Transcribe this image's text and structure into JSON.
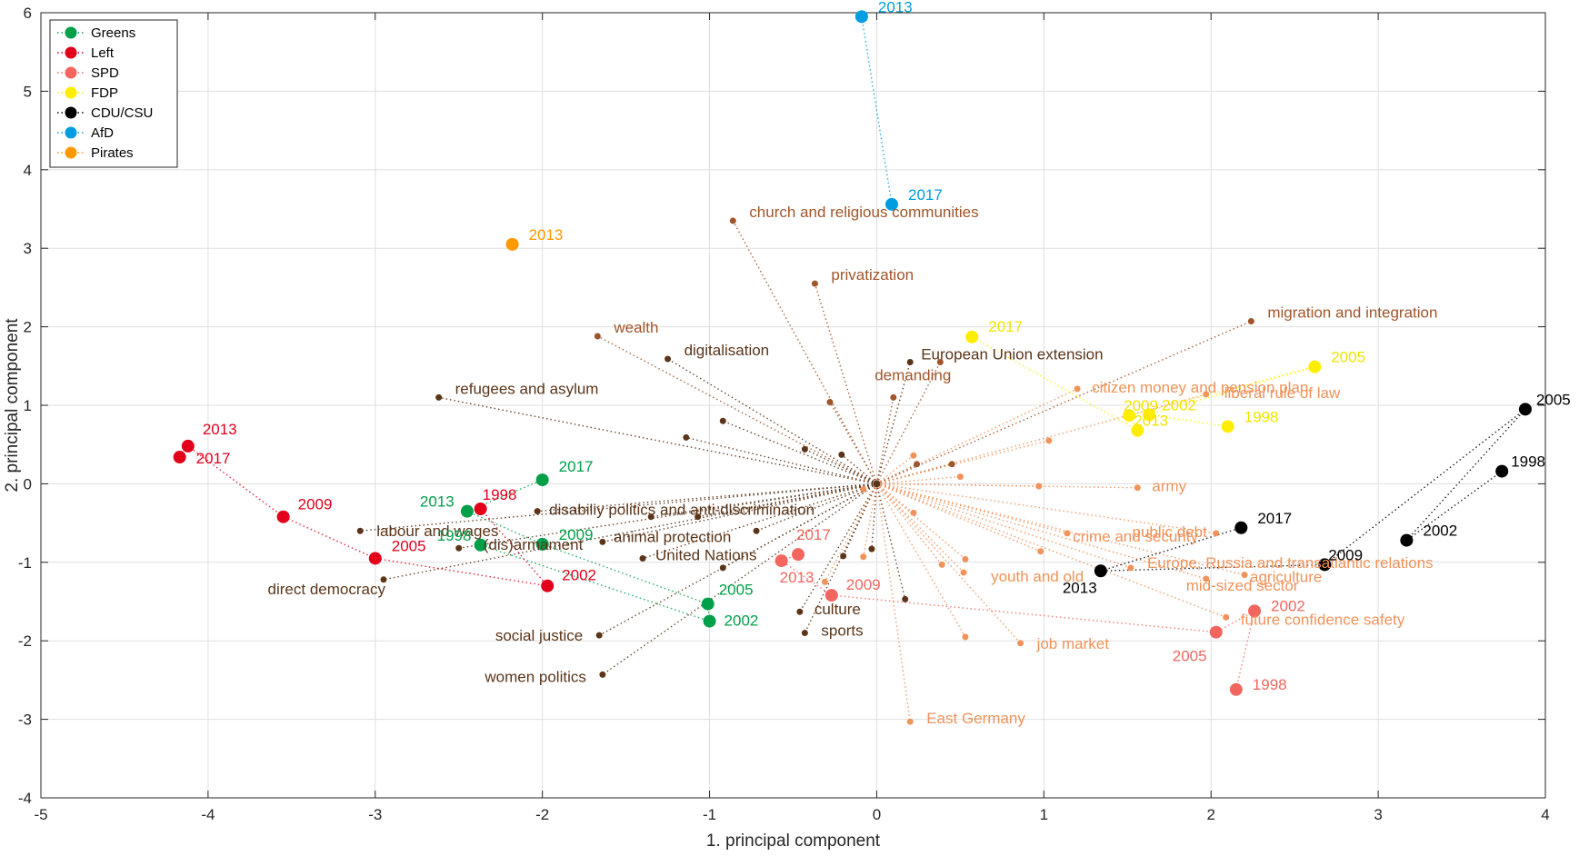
{
  "chart_data": {
    "type": "scatter",
    "title": "",
    "xlabel": "1. principal component",
    "ylabel": "2. principal component",
    "xlim": [
      -5,
      4
    ],
    "ylim": [
      -4,
      6
    ],
    "xticks": [
      "-5",
      "-4",
      "-3",
      "-2",
      "-1",
      "0",
      "1",
      "2",
      "3",
      "4"
    ],
    "yticks": [
      "-4",
      "-3",
      "-2",
      "-1",
      "0",
      "1",
      "2",
      "3",
      "4",
      "5",
      "6"
    ],
    "grid": true,
    "legend_position": "top-left",
    "origin": [
      0,
      0
    ],
    "parties": [
      {
        "name": "Greens",
        "color": "#00a04a",
        "points": [
          {
            "label": "1998",
            "x": -2.37,
            "y": -0.78
          },
          {
            "label": "2002",
            "x": -1.0,
            "y": -1.75
          },
          {
            "label": "2005",
            "x": -1.01,
            "y": -1.53
          },
          {
            "label": "2009",
            "x": -2.0,
            "y": -0.77
          },
          {
            "label": "2013",
            "x": -2.45,
            "y": -0.35
          },
          {
            "label": "2017",
            "x": -2.0,
            "y": 0.05
          }
        ]
      },
      {
        "name": "Left",
        "color": "#e2001a",
        "points": [
          {
            "label": "1998",
            "x": -2.37,
            "y": -0.32
          },
          {
            "label": "2002",
            "x": -1.97,
            "y": -1.3
          },
          {
            "label": "2005",
            "x": -3.0,
            "y": -0.95
          },
          {
            "label": "2009",
            "x": -3.55,
            "y": -0.42
          },
          {
            "label": "2013",
            "x": -4.12,
            "y": 0.48
          },
          {
            "label": "2017",
            "x": -4.17,
            "y": 0.34
          }
        ]
      },
      {
        "name": "SPD",
        "color": "#f2665f",
        "points": [
          {
            "label": "1998",
            "x": 2.15,
            "y": -2.62
          },
          {
            "label": "2002",
            "x": 2.26,
            "y": -1.62
          },
          {
            "label": "2005",
            "x": 2.03,
            "y": -1.89
          },
          {
            "label": "2009",
            "x": -0.27,
            "y": -1.42
          },
          {
            "label": "2013",
            "x": -0.57,
            "y": -0.98
          },
          {
            "label": "2017",
            "x": -0.47,
            "y": -0.9
          }
        ]
      },
      {
        "name": "FDP",
        "color": "#ffed00",
        "points": [
          {
            "label": "1998",
            "x": 2.1,
            "y": 0.73
          },
          {
            "label": "2002",
            "x": 1.63,
            "y": 0.88
          },
          {
            "label": "2005",
            "x": 2.62,
            "y": 1.49
          },
          {
            "label": "2009",
            "x": 1.51,
            "y": 0.87
          },
          {
            "label": "2013",
            "x": 1.56,
            "y": 0.68
          },
          {
            "label": "2017",
            "x": 0.57,
            "y": 1.87
          }
        ]
      },
      {
        "name": "CDU/CSU",
        "color": "#000000",
        "points": [
          {
            "label": "1998",
            "x": 3.74,
            "y": 0.16
          },
          {
            "label": "2002",
            "x": 3.17,
            "y": -0.72
          },
          {
            "label": "2005",
            "x": 3.88,
            "y": 0.95
          },
          {
            "label": "2009",
            "x": 2.68,
            "y": -1.03
          },
          {
            "label": "2013",
            "x": 1.34,
            "y": -1.11
          },
          {
            "label": "2017",
            "x": 2.18,
            "y": -0.56
          }
        ]
      },
      {
        "name": "AfD",
        "color": "#009ee0",
        "points": [
          {
            "label": "2013",
            "x": -0.09,
            "y": 5.95
          },
          {
            "label": "2017",
            "x": 0.09,
            "y": 3.56
          }
        ]
      },
      {
        "name": "Pirates",
        "color": "#ff9900",
        "points": [
          {
            "label": "2013",
            "x": -2.18,
            "y": 3.05
          }
        ]
      }
    ],
    "loadings": [
      {
        "label": "church and religious communities",
        "x": -0.86,
        "y": 3.35,
        "color": "#a0552a"
      },
      {
        "label": "privatization",
        "x": -0.37,
        "y": 2.55,
        "color": "#a0552a"
      },
      {
        "label": "wealth",
        "x": -1.67,
        "y": 1.88,
        "color": "#a0552a"
      },
      {
        "label": "digitalisation",
        "x": -1.25,
        "y": 1.59,
        "color": "#5a3519"
      },
      {
        "label": "refugees and asylum",
        "x": -2.62,
        "y": 1.1,
        "color": "#5a3519"
      },
      {
        "label": "migration and integration",
        "x": 2.24,
        "y": 2.07,
        "color": "#a0552a"
      },
      {
        "label": "European Union extension",
        "x": 0.2,
        "y": 1.55,
        "color": "#5a3519"
      },
      {
        "label": "demanding",
        "x": 0.38,
        "y": 1.55,
        "color": "#a0552a"
      },
      {
        "label": "citizen money and pension plan",
        "x": 1.2,
        "y": 1.21,
        "color": "#f0935a"
      },
      {
        "label": "liberal rule of law",
        "x": 1.97,
        "y": 1.14,
        "color": "#f0935a"
      },
      {
        "label": "army",
        "x": 1.56,
        "y": -0.05,
        "color": "#f0935a"
      },
      {
        "label": "public debt",
        "x": 2.03,
        "y": -0.63,
        "color": "#f0935a"
      },
      {
        "label": "crime and security",
        "x": 1.14,
        "y": -0.63,
        "color": "#f0935a"
      },
      {
        "label": "Europe, Russia and transatlantic relations",
        "x": 1.52,
        "y": -1.07,
        "color": "#f0935a"
      },
      {
        "label": "agriculture",
        "x": 2.2,
        "y": -1.16,
        "color": "#f0935a"
      },
      {
        "label": "mid-sized sector",
        "x": 1.97,
        "y": -1.21,
        "color": "#f0935a"
      },
      {
        "label": "future confidence safety",
        "x": 2.09,
        "y": -1.7,
        "color": "#f0935a"
      },
      {
        "label": "youth and old",
        "x": 0.52,
        "y": -1.13,
        "color": "#f0935a"
      },
      {
        "label": "job market",
        "x": 0.86,
        "y": -2.03,
        "color": "#f0935a"
      },
      {
        "label": "East Germany",
        "x": 0.2,
        "y": -3.03,
        "color": "#f0935a"
      },
      {
        "label": "disabiliy politics and anti-discrimination",
        "x": -2.03,
        "y": -0.35,
        "color": "#5a3519"
      },
      {
        "label": "labour and wages",
        "x": -3.09,
        "y": -0.6,
        "color": "#5a3519"
      },
      {
        "label": "animal protection",
        "x": -1.64,
        "y": -0.74,
        "color": "#5a3519"
      },
      {
        "label": "United Nations",
        "x": -1.4,
        "y": -0.95,
        "color": "#5a3519"
      },
      {
        "label": "(dis)armament",
        "x": -2.5,
        "y": -0.82,
        "color": "#5a3519"
      },
      {
        "label": "direct democracy",
        "x": -2.95,
        "y": -1.22,
        "color": "#5a3519"
      },
      {
        "label": "social justice",
        "x": -1.66,
        "y": -1.93,
        "color": "#5a3519"
      },
      {
        "label": "women politics",
        "x": -1.64,
        "y": -2.43,
        "color": "#5a3519"
      },
      {
        "label": "culture",
        "x": -0.46,
        "y": -1.63,
        "color": "#5a3519"
      },
      {
        "label": "sports",
        "x": -0.43,
        "y": -1.9,
        "color": "#5a3519"
      }
    ],
    "unlabeled_loadings": [
      {
        "x": -0.28,
        "y": 1.04,
        "color": "#a0552a"
      },
      {
        "x": 0.1,
        "y": 1.1,
        "color": "#a0552a"
      },
      {
        "x": -0.92,
        "y": 0.8,
        "color": "#5a3519"
      },
      {
        "x": -1.14,
        "y": 0.59,
        "color": "#5a3519"
      },
      {
        "x": -0.43,
        "y": 0.44,
        "color": "#5a3519"
      },
      {
        "x": -0.21,
        "y": 0.37,
        "color": "#5a3519"
      },
      {
        "x": 0.22,
        "y": 0.36,
        "color": "#f0935a"
      },
      {
        "x": 0.24,
        "y": 0.25,
        "color": "#a0552a"
      },
      {
        "x": 0.45,
        "y": 0.25,
        "color": "#a0552a"
      },
      {
        "x": 0.5,
        "y": 0.09,
        "color": "#f0935a"
      },
      {
        "x": 1.03,
        "y": 0.55,
        "color": "#f0935a"
      },
      {
        "x": 0.97,
        "y": -0.03,
        "color": "#f0935a"
      },
      {
        "x": -0.08,
        "y": -0.07,
        "color": "#f0935a"
      },
      {
        "x": 0.22,
        "y": -0.37,
        "color": "#f0935a"
      },
      {
        "x": -1.35,
        "y": -0.42,
        "color": "#5a3519"
      },
      {
        "x": -1.07,
        "y": -0.42,
        "color": "#5a3519"
      },
      {
        "x": -0.72,
        "y": -0.6,
        "color": "#5a3519"
      },
      {
        "x": -0.92,
        "y": -1.07,
        "color": "#5a3519"
      },
      {
        "x": -0.2,
        "y": -0.92,
        "color": "#5a3519"
      },
      {
        "x": -0.03,
        "y": -0.83,
        "color": "#5a3519"
      },
      {
        "x": -0.08,
        "y": -0.93,
        "color": "#f0935a"
      },
      {
        "x": 0.39,
        "y": -1.03,
        "color": "#f0935a"
      },
      {
        "x": 0.53,
        "y": -0.96,
        "color": "#f0935a"
      },
      {
        "x": 0.98,
        "y": -0.86,
        "color": "#f0935a"
      },
      {
        "x": 0.17,
        "y": -1.47,
        "color": "#5a3519"
      },
      {
        "x": -0.31,
        "y": -1.25,
        "color": "#f0935a"
      },
      {
        "x": 0.53,
        "y": -1.95,
        "color": "#f0935a"
      }
    ]
  }
}
